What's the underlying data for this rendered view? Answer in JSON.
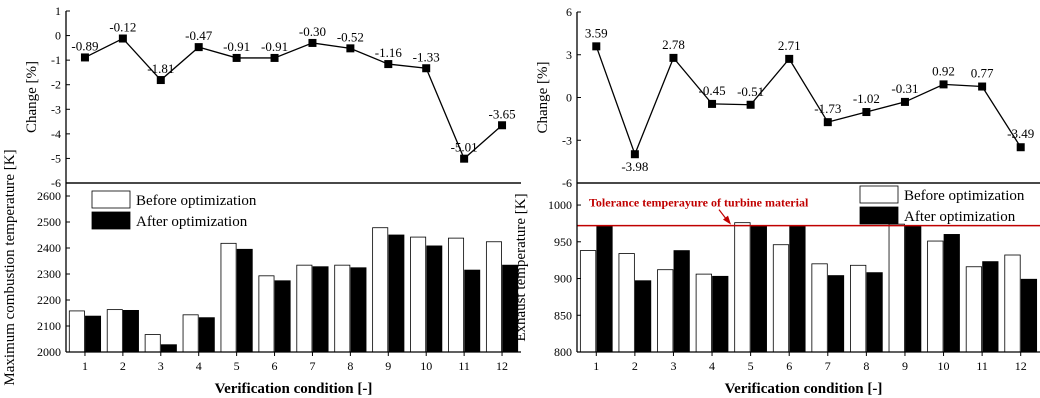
{
  "chart_data": [
    {
      "type": "line",
      "panel": "left-top",
      "ylabel": "Change [%]",
      "ylim": [
        -6,
        1
      ],
      "yticks": [
        -6,
        -5,
        -4,
        -3,
        -2,
        -1,
        0,
        1
      ],
      "x": [
        1,
        2,
        3,
        4,
        5,
        6,
        7,
        8,
        9,
        10,
        11,
        12
      ],
      "values": [
        -0.89,
        -0.12,
        -1.81,
        -0.47,
        -0.91,
        -0.91,
        -0.3,
        -0.52,
        -1.16,
        -1.33,
        -5.01,
        -3.65
      ],
      "labels": [
        "-0.89",
        "-0.12",
        "-1.81",
        "-0.47",
        "-0.91",
        "-0.91",
        "-0.30",
        "-0.52",
        "-1.16",
        "-1.33",
        "-5.01",
        "-3.65"
      ],
      "marker": "square",
      "color": "#000000"
    },
    {
      "type": "bar",
      "panel": "left-bottom",
      "ylabel": "Maximum combustion temperature [K]",
      "xlabel": "Verification condition [-]",
      "ylim": [
        2000,
        2650
      ],
      "yticks": [
        2000,
        2100,
        2200,
        2300,
        2400,
        2500,
        2600
      ],
      "categories": [
        "1",
        "2",
        "3",
        "4",
        "5",
        "6",
        "7",
        "8",
        "9",
        "10",
        "11",
        "12"
      ],
      "series": [
        {
          "name": "Before optimization",
          "color": "#ffffff",
          "values": [
            2158,
            2163,
            2067,
            2143,
            2418,
            2293,
            2334,
            2334,
            2478,
            2442,
            2438,
            2424
          ]
        },
        {
          "name": "After optimization",
          "color": "#000000",
          "values": [
            2138,
            2160,
            2028,
            2132,
            2395,
            2274,
            2328,
            2324,
            2450,
            2408,
            2315,
            2334
          ]
        }
      ],
      "legend": "top-left"
    },
    {
      "type": "line",
      "panel": "right-top",
      "ylabel": "Change [%]",
      "ylim": [
        -6,
        6
      ],
      "yticks": [
        -6,
        -3,
        0,
        3,
        6
      ],
      "x": [
        1,
        2,
        3,
        4,
        5,
        6,
        7,
        8,
        9,
        10,
        11,
        12
      ],
      "values": [
        3.59,
        -3.98,
        2.78,
        -0.45,
        -0.51,
        2.71,
        -1.73,
        -1.02,
        -0.31,
        0.92,
        0.77,
        -3.49
      ],
      "labels": [
        "3.59",
        "-3.98",
        "2.78",
        "-0.45",
        "-0.51",
        "2.71",
        "-1.73",
        "-1.02",
        "-0.31",
        "0.92",
        "0.77",
        "-3.49"
      ],
      "marker": "square",
      "color": "#000000"
    },
    {
      "type": "bar",
      "panel": "right-bottom",
      "ylabel": "Exhaust temperature [K]",
      "xlabel": "Verification condition [-]",
      "ylim": [
        800,
        1030
      ],
      "yticks": [
        800,
        850,
        900,
        950,
        1000
      ],
      "categories": [
        "1",
        "2",
        "3",
        "4",
        "5",
        "6",
        "7",
        "8",
        "9",
        "10",
        "11",
        "12"
      ],
      "series": [
        {
          "name": "Before optimization",
          "color": "#ffffff",
          "values": [
            938,
            934,
            912,
            906,
            976,
            946,
            920,
            918,
            974,
            951,
            916,
            932
          ]
        },
        {
          "name": "After optimization",
          "color": "#000000",
          "values": [
            972,
            897,
            938,
            903,
            972,
            972,
            904,
            908,
            972,
            960,
            923,
            899
          ]
        }
      ],
      "legend": "top-right",
      "reference_line": {
        "value": 972,
        "label": "Tolerance temperayure of turbine material",
        "color": "#c00000"
      }
    }
  ]
}
